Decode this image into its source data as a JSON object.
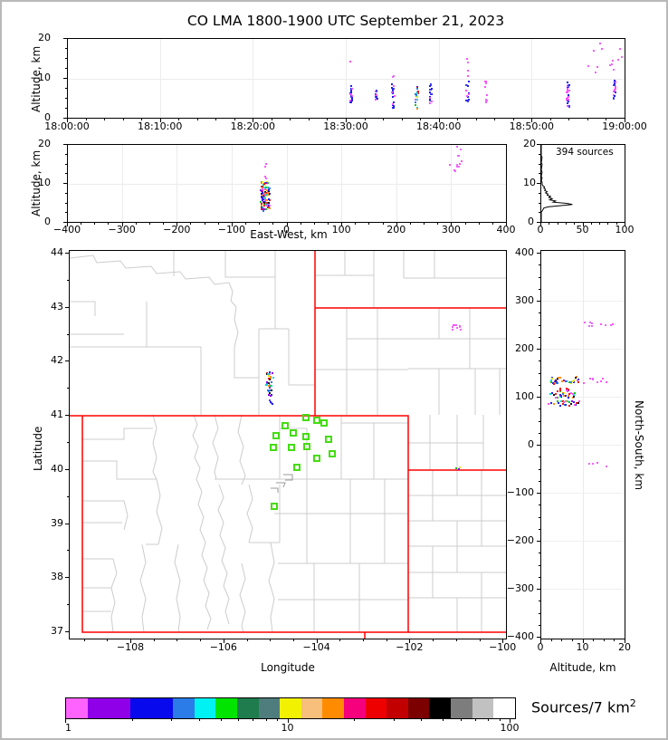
{
  "chart_data": {
    "title": "CO LMA 1800-1900 UTC September 21, 2023",
    "palette_mixed": [
      "#2020EE",
      "#FF50FF",
      "#8A00E8",
      "#00D8D8",
      "#18C218",
      "#FF8C00",
      "#EE1515",
      "#E8E800",
      "#2B7CE8",
      "#151515"
    ],
    "palette_bm": [
      "#2020EE",
      "#FF50FF",
      "#2020EE",
      "#FF50FF",
      "#4040EE"
    ],
    "palette_m": [
      "#FF50FF",
      "#EE66FF"
    ],
    "time_height": {
      "type": "scatter",
      "ylabel": "Altitude, km",
      "xlim_seconds": [
        0,
        3600
      ],
      "ylim": [
        0,
        20
      ],
      "xtick_labels": [
        "18:00:00",
        "18:10:00",
        "18:20:00",
        "18:30:00",
        "18:40:00",
        "18:50:00",
        "19:00:00"
      ],
      "ytick_labels": [
        "0",
        "10",
        "20"
      ],
      "clusters": [
        {
          "x": [
            1822,
            1836
          ],
          "y": [
            3.8,
            8.2
          ],
          "n": 26,
          "pal": "palette_bm"
        },
        {
          "x": [
            1818,
            1821
          ],
          "y": [
            14.2,
            14.6
          ],
          "n": 1,
          "pal": "palette_m"
        },
        {
          "x": [
            1988,
            1998
          ],
          "y": [
            4.3,
            7.3
          ],
          "n": 12,
          "pal": "palette_bm"
        },
        {
          "x": [
            2092,
            2108
          ],
          "y": [
            2.6,
            9.3
          ],
          "n": 20,
          "pal": "palette_bm"
        },
        {
          "x": [
            2098,
            2103
          ],
          "y": [
            9.8,
            10.8
          ],
          "n": 2,
          "pal": "palette_m"
        },
        {
          "x": [
            2242,
            2262
          ],
          "y": [
            2.1,
            8.4
          ],
          "n": 20,
          "pal": "palette_mixed"
        },
        {
          "x": [
            2332,
            2348
          ],
          "y": [
            3.5,
            8.7
          ],
          "n": 16,
          "pal": "palette_bm"
        },
        {
          "x": [
            2572,
            2588
          ],
          "y": [
            4.0,
            9.6
          ],
          "n": 14,
          "pal": "palette_bm"
        },
        {
          "x": [
            2576,
            2585
          ],
          "y": [
            10.5,
            17.0
          ],
          "n": 4,
          "pal": "palette_m"
        },
        {
          "x": [
            2692,
            2708
          ],
          "y": [
            3.2,
            10.2
          ],
          "n": 10,
          "pal": "palette_m"
        },
        {
          "x": [
            3222,
            3238
          ],
          "y": [
            2.7,
            9.2
          ],
          "n": 24,
          "pal": "palette_bm"
        },
        {
          "x": [
            3330,
            3595
          ],
          "y": [
            10.5,
            19.6
          ],
          "n": 13,
          "pal": "palette_m"
        },
        {
          "x": [
            3522,
            3538
          ],
          "y": [
            4.2,
            9.6
          ],
          "n": 20,
          "pal": "palette_bm"
        }
      ]
    },
    "ew_height": {
      "type": "scatter",
      "ylabel": "Altitude, km",
      "xlabel": "East-West, km",
      "xlim": [
        -400,
        400
      ],
      "ylim": [
        0,
        20
      ],
      "xtick_labels": [
        "−400",
        "−300",
        "−200",
        "−100",
        "0",
        "100",
        "200",
        "300",
        "400"
      ],
      "ytick_labels": [
        "0",
        "10",
        "20"
      ],
      "clusters": [
        {
          "x": [
            -48,
            -32
          ],
          "y": [
            2.9,
            10.6
          ],
          "n": 110,
          "pal": "palette_mixed"
        },
        {
          "x": [
            -42,
            -38
          ],
          "y": [
            11.0,
            17.2
          ],
          "n": 4,
          "pal": "palette_m"
        },
        {
          "x": [
            296,
            318
          ],
          "y": [
            10.8,
            20.0
          ],
          "n": 12,
          "pal": "palette_m"
        }
      ]
    },
    "altitude_histogram": {
      "type": "line",
      "annotation": "394 sources",
      "xlim": [
        0,
        100
      ],
      "ylim": [
        0,
        20
      ],
      "xtick_labels": [
        "0",
        "50",
        "100"
      ],
      "ytick_labels": [
        "0",
        "10",
        "20"
      ],
      "profile_count_alt": [
        [
          0,
          0
        ],
        [
          0,
          2.8
        ],
        [
          1,
          3.0
        ],
        [
          2,
          3.4
        ],
        [
          3,
          3.8
        ],
        [
          8,
          4.1
        ],
        [
          22,
          4.4
        ],
        [
          37,
          4.7
        ],
        [
          30,
          5.0
        ],
        [
          14,
          5.3
        ],
        [
          17,
          5.6
        ],
        [
          10,
          5.9
        ],
        [
          13,
          6.2
        ],
        [
          9,
          6.5
        ],
        [
          11,
          6.8
        ],
        [
          7,
          7.1
        ],
        [
          8,
          7.4
        ],
        [
          5,
          7.7
        ],
        [
          7,
          8.0
        ],
        [
          4,
          8.3
        ],
        [
          5,
          8.6
        ],
        [
          3,
          8.9
        ],
        [
          4,
          9.2
        ],
        [
          2,
          9.5
        ],
        [
          1,
          9.9
        ],
        [
          1,
          10.4
        ],
        [
          0,
          10.9
        ],
        [
          1,
          11.5
        ],
        [
          0,
          12.0
        ],
        [
          1,
          13.0
        ],
        [
          0,
          13.6
        ],
        [
          1,
          15.0
        ],
        [
          0,
          15.5
        ],
        [
          1,
          16.8
        ],
        [
          0,
          17.2
        ],
        [
          0,
          20
        ]
      ]
    },
    "map": {
      "type": "scatter",
      "xlabel": "Longitude",
      "ylabel": "Latitude",
      "xtick_labels": [
        "−108",
        "−106",
        "−104",
        "−102",
        "−100"
      ],
      "ytick_labels": [
        "37",
        "38",
        "39",
        "40",
        "41",
        "42",
        "43",
        "44"
      ],
      "xtick_values": [
        -108,
        -106,
        -104,
        -102,
        -100
      ],
      "ytick_values": [
        37,
        38,
        39,
        40,
        41,
        42,
        43,
        44
      ],
      "station_color": "#44DD11",
      "stations_lonlat": [
        [
          -104.25,
          40.97
        ],
        [
          -104.02,
          40.92
        ],
        [
          -103.86,
          40.86
        ],
        [
          -104.7,
          40.82
        ],
        [
          -104.89,
          40.64
        ],
        [
          -104.52,
          40.68
        ],
        [
          -104.25,
          40.62
        ],
        [
          -103.76,
          40.56
        ],
        [
          -104.95,
          40.41
        ],
        [
          -104.56,
          40.41
        ],
        [
          -104.23,
          40.44
        ],
        [
          -103.68,
          40.29
        ],
        [
          -104.02,
          40.21
        ],
        [
          -104.43,
          40.04
        ],
        [
          -104.93,
          39.33
        ]
      ],
      "clusters": [
        {
          "x": [
            -105.12,
            -104.95
          ],
          "y": [
            41.66,
            41.8
          ],
          "n": 12,
          "pal": "palette_mixed"
        },
        {
          "x": [
            -105.1,
            -104.96
          ],
          "y": [
            41.5,
            41.63
          ],
          "n": 12,
          "pal": "palette_mixed"
        },
        {
          "x": [
            -105.08,
            -104.98
          ],
          "y": [
            41.36,
            41.48
          ],
          "n": 9,
          "pal": "palette_mixed"
        },
        {
          "x": [
            -105.03,
            -104.96
          ],
          "y": [
            41.22,
            41.3
          ],
          "n": 4,
          "pal": "palette_bm"
        },
        {
          "x": [
            -101.1,
            -100.85
          ],
          "y": [
            42.58,
            42.73
          ],
          "n": 9,
          "pal": "palette_m"
        },
        {
          "x": [
            -101.05,
            -100.93
          ],
          "y": [
            39.99,
            40.07
          ],
          "n": 3,
          "pal": "palette_mixed"
        }
      ]
    },
    "ns_height": {
      "type": "scatter",
      "xlabel": "Altitude, km",
      "ylabel": "North-South, km",
      "xlim": [
        0,
        20
      ],
      "ylim": [
        -400,
        400
      ],
      "xtick_labels": [
        "0",
        "10",
        "20"
      ],
      "ytick_labels": [
        "400",
        "300",
        "200",
        "100",
        "0",
        "−100",
        "−200",
        "−300",
        "−400"
      ],
      "clusters": [
        {
          "x": [
            10.2,
            12.2
          ],
          "y": [
            248,
            258
          ],
          "n": 6,
          "pal": "palette_m"
        },
        {
          "x": [
            13.5,
            17.5
          ],
          "y": [
            250,
            257
          ],
          "n": 5,
          "pal": "palette_m"
        },
        {
          "x": [
            1.8,
            9.2
          ],
          "y": [
            128,
            143
          ],
          "n": 34,
          "pal": "palette_mixed"
        },
        {
          "x": [
            9.8,
            13.5
          ],
          "y": [
            128,
            142
          ],
          "n": 6,
          "pal": "palette_m"
        },
        {
          "x": [
            14.0,
            17.5
          ],
          "y": [
            132,
            140
          ],
          "n": 3,
          "pal": "palette_m"
        },
        {
          "x": [
            2.8,
            7.2
          ],
          "y": [
            112,
            119
          ],
          "n": 12,
          "pal": "palette_mixed"
        },
        {
          "x": [
            1.8,
            8.2
          ],
          "y": [
            99,
            110
          ],
          "n": 26,
          "pal": "palette_mixed"
        },
        {
          "x": [
            1.4,
            9.0
          ],
          "y": [
            83,
            93
          ],
          "n": 26,
          "pal": "palette_mixed"
        },
        {
          "x": [
            11.0,
            17.0
          ],
          "y": [
            -46,
            -34
          ],
          "n": 4,
          "pal": "palette_m"
        }
      ]
    },
    "colorbar": {
      "label_base": "Sources/7 km",
      "label_exponent": "2",
      "scale": "log",
      "range": [
        1,
        100
      ],
      "tick_labels": [
        "1",
        "10",
        "100"
      ],
      "tick_values": [
        1,
        10,
        100
      ],
      "minor_tick_values": [
        2,
        3,
        4,
        5,
        6,
        7,
        8,
        9,
        20,
        30,
        40,
        50,
        60,
        70,
        80,
        90
      ],
      "colors": [
        "#FF63FF",
        "#8F00E8",
        "#0909EE",
        "#2B7CE8",
        "#00F2F2",
        "#00E400",
        "#1F7D4D",
        "#4F7D7D",
        "#F2F200",
        "#F7BE7C",
        "#FF8C00",
        "#F5007D",
        "#EE0000",
        "#C30000",
        "#7D0000",
        "#000000",
        "#7D7D7D",
        "#C1C1C1",
        "#FFFFFF"
      ],
      "segment_weights": [
        1,
        2,
        2,
        1,
        1,
        1,
        1,
        1,
        1,
        1,
        1,
        1,
        1,
        1,
        1,
        1,
        1,
        1,
        1
      ]
    }
  }
}
